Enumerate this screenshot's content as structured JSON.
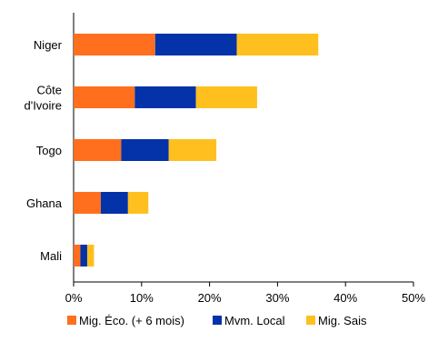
{
  "chart_data": {
    "type": "bar",
    "orientation": "horizontal",
    "stacked": true,
    "categories": [
      [
        "Niger"
      ],
      [
        "Côte",
        "d'Ivoire"
      ],
      [
        "Togo"
      ],
      [
        "Ghana"
      ],
      [
        "Mali"
      ]
    ],
    "series": [
      {
        "name": "Mig. Éco. (+ 6 mois)",
        "color": "#FF6F1E",
        "values": [
          12,
          9,
          7,
          4,
          1
        ]
      },
      {
        "name": "Mvm. Local",
        "color": "#0432A8",
        "values": [
          12,
          9,
          7,
          4,
          1
        ]
      },
      {
        "name": "Mig. Sais",
        "color": "#FFC01F",
        "values": [
          12,
          9,
          7,
          3,
          1
        ]
      }
    ],
    "x_ticks": [
      "0%",
      "10%",
      "20%",
      "30%",
      "40%",
      "50%"
    ],
    "xlim": [
      0,
      50
    ],
    "grid": false,
    "legend_position": "bottom"
  }
}
